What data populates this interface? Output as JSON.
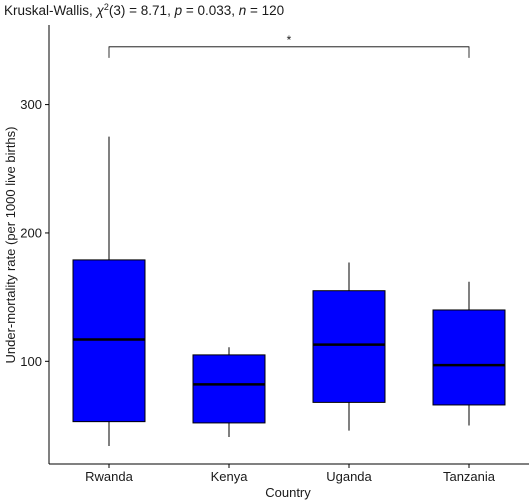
{
  "chart_data": {
    "type": "boxplot",
    "title": {
      "prefix": "Kruskal-Wallis, ",
      "chi": "χ",
      "sup": "2",
      "df": "(3) = 8.71, ",
      "p_italic": "p",
      "p_value": " = 0.033, ",
      "n_italic": "n",
      "n_value": " = 120"
    },
    "xlabel": "Country",
    "ylabel": "Under-mortality rate (per 1000 live births)",
    "ylim": [
      20,
      362
    ],
    "yticks": [
      100,
      200,
      300
    ],
    "categories": [
      "Rwanda",
      "Kenya",
      "Uganda",
      "Tanzania"
    ],
    "fill_color": "#0000ff",
    "boxes": [
      {
        "category": "Rwanda",
        "min": 34,
        "q1": 53,
        "median": 117,
        "q3": 179,
        "max": 275
      },
      {
        "category": "Kenya",
        "min": 41,
        "q1": 52,
        "median": 82,
        "q3": 105,
        "max": 111
      },
      {
        "category": "Uganda",
        "min": 46,
        "q1": 68,
        "median": 113,
        "q3": 155,
        "max": 177
      },
      {
        "category": "Tanzania",
        "min": 50,
        "q1": 66,
        "median": 97,
        "q3": 140,
        "max": 162
      }
    ],
    "significance": {
      "from": "Rwanda",
      "to": "Tanzania",
      "y": 345,
      "label": "*"
    }
  }
}
